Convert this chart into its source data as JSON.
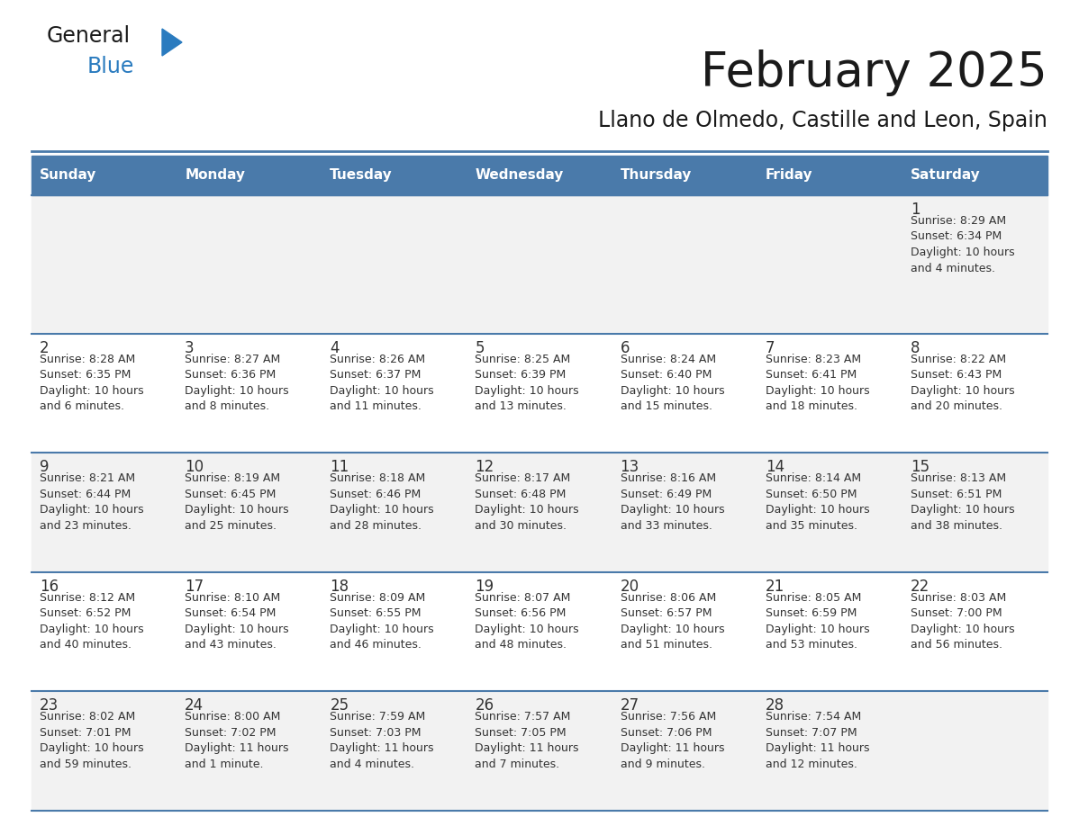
{
  "title": "February 2025",
  "subtitle": "Llano de Olmedo, Castille and Leon, Spain",
  "header_color": "#4a7aaa",
  "header_text_color": "#ffffff",
  "days_of_week": [
    "Sunday",
    "Monday",
    "Tuesday",
    "Wednesday",
    "Thursday",
    "Friday",
    "Saturday"
  ],
  "row_bg_odd": "#f2f2f2",
  "row_bg_even": "#ffffff",
  "divider_color": "#4a7aaa",
  "text_color": "#333333",
  "day_number_color": "#333333",
  "calendar_data": [
    [
      {
        "day": "",
        "lines": []
      },
      {
        "day": "",
        "lines": []
      },
      {
        "day": "",
        "lines": []
      },
      {
        "day": "",
        "lines": []
      },
      {
        "day": "",
        "lines": []
      },
      {
        "day": "",
        "lines": []
      },
      {
        "day": "1",
        "lines": [
          "Sunrise: 8:29 AM",
          "Sunset: 6:34 PM",
          "Daylight: 10 hours",
          "and 4 minutes."
        ]
      }
    ],
    [
      {
        "day": "2",
        "lines": [
          "Sunrise: 8:28 AM",
          "Sunset: 6:35 PM",
          "Daylight: 10 hours",
          "and 6 minutes."
        ]
      },
      {
        "day": "3",
        "lines": [
          "Sunrise: 8:27 AM",
          "Sunset: 6:36 PM",
          "Daylight: 10 hours",
          "and 8 minutes."
        ]
      },
      {
        "day": "4",
        "lines": [
          "Sunrise: 8:26 AM",
          "Sunset: 6:37 PM",
          "Daylight: 10 hours",
          "and 11 minutes."
        ]
      },
      {
        "day": "5",
        "lines": [
          "Sunrise: 8:25 AM",
          "Sunset: 6:39 PM",
          "Daylight: 10 hours",
          "and 13 minutes."
        ]
      },
      {
        "day": "6",
        "lines": [
          "Sunrise: 8:24 AM",
          "Sunset: 6:40 PM",
          "Daylight: 10 hours",
          "and 15 minutes."
        ]
      },
      {
        "day": "7",
        "lines": [
          "Sunrise: 8:23 AM",
          "Sunset: 6:41 PM",
          "Daylight: 10 hours",
          "and 18 minutes."
        ]
      },
      {
        "day": "8",
        "lines": [
          "Sunrise: 8:22 AM",
          "Sunset: 6:43 PM",
          "Daylight: 10 hours",
          "and 20 minutes."
        ]
      }
    ],
    [
      {
        "day": "9",
        "lines": [
          "Sunrise: 8:21 AM",
          "Sunset: 6:44 PM",
          "Daylight: 10 hours",
          "and 23 minutes."
        ]
      },
      {
        "day": "10",
        "lines": [
          "Sunrise: 8:19 AM",
          "Sunset: 6:45 PM",
          "Daylight: 10 hours",
          "and 25 minutes."
        ]
      },
      {
        "day": "11",
        "lines": [
          "Sunrise: 8:18 AM",
          "Sunset: 6:46 PM",
          "Daylight: 10 hours",
          "and 28 minutes."
        ]
      },
      {
        "day": "12",
        "lines": [
          "Sunrise: 8:17 AM",
          "Sunset: 6:48 PM",
          "Daylight: 10 hours",
          "and 30 minutes."
        ]
      },
      {
        "day": "13",
        "lines": [
          "Sunrise: 8:16 AM",
          "Sunset: 6:49 PM",
          "Daylight: 10 hours",
          "and 33 minutes."
        ]
      },
      {
        "day": "14",
        "lines": [
          "Sunrise: 8:14 AM",
          "Sunset: 6:50 PM",
          "Daylight: 10 hours",
          "and 35 minutes."
        ]
      },
      {
        "day": "15",
        "lines": [
          "Sunrise: 8:13 AM",
          "Sunset: 6:51 PM",
          "Daylight: 10 hours",
          "and 38 minutes."
        ]
      }
    ],
    [
      {
        "day": "16",
        "lines": [
          "Sunrise: 8:12 AM",
          "Sunset: 6:52 PM",
          "Daylight: 10 hours",
          "and 40 minutes."
        ]
      },
      {
        "day": "17",
        "lines": [
          "Sunrise: 8:10 AM",
          "Sunset: 6:54 PM",
          "Daylight: 10 hours",
          "and 43 minutes."
        ]
      },
      {
        "day": "18",
        "lines": [
          "Sunrise: 8:09 AM",
          "Sunset: 6:55 PM",
          "Daylight: 10 hours",
          "and 46 minutes."
        ]
      },
      {
        "day": "19",
        "lines": [
          "Sunrise: 8:07 AM",
          "Sunset: 6:56 PM",
          "Daylight: 10 hours",
          "and 48 minutes."
        ]
      },
      {
        "day": "20",
        "lines": [
          "Sunrise: 8:06 AM",
          "Sunset: 6:57 PM",
          "Daylight: 10 hours",
          "and 51 minutes."
        ]
      },
      {
        "day": "21",
        "lines": [
          "Sunrise: 8:05 AM",
          "Sunset: 6:59 PM",
          "Daylight: 10 hours",
          "and 53 minutes."
        ]
      },
      {
        "day": "22",
        "lines": [
          "Sunrise: 8:03 AM",
          "Sunset: 7:00 PM",
          "Daylight: 10 hours",
          "and 56 minutes."
        ]
      }
    ],
    [
      {
        "day": "23",
        "lines": [
          "Sunrise: 8:02 AM",
          "Sunset: 7:01 PM",
          "Daylight: 10 hours",
          "and 59 minutes."
        ]
      },
      {
        "day": "24",
        "lines": [
          "Sunrise: 8:00 AM",
          "Sunset: 7:02 PM",
          "Daylight: 11 hours",
          "and 1 minute."
        ]
      },
      {
        "day": "25",
        "lines": [
          "Sunrise: 7:59 AM",
          "Sunset: 7:03 PM",
          "Daylight: 11 hours",
          "and 4 minutes."
        ]
      },
      {
        "day": "26",
        "lines": [
          "Sunrise: 7:57 AM",
          "Sunset: 7:05 PM",
          "Daylight: 11 hours",
          "and 7 minutes."
        ]
      },
      {
        "day": "27",
        "lines": [
          "Sunrise: 7:56 AM",
          "Sunset: 7:06 PM",
          "Daylight: 11 hours",
          "and 9 minutes."
        ]
      },
      {
        "day": "28",
        "lines": [
          "Sunrise: 7:54 AM",
          "Sunset: 7:07 PM",
          "Daylight: 11 hours",
          "and 12 minutes."
        ]
      },
      {
        "day": "",
        "lines": []
      }
    ]
  ],
  "logo_general_color": "#1a1a1a",
  "logo_blue_color": "#2a7bbf",
  "logo_triangle_color": "#2a7bbf",
  "fig_width": 11.88,
  "fig_height": 9.18,
  "dpi": 100
}
